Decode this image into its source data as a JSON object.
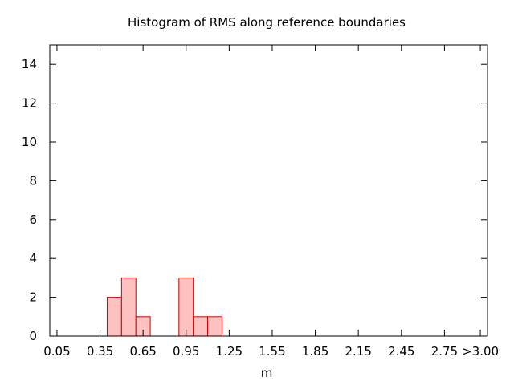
{
  "chart_data": {
    "type": "bar",
    "title": "Histogram of RMS along reference boundaries",
    "xlabel": "m",
    "ylabel": "",
    "xlim": [
      0.0,
      3.05
    ],
    "ylim": [
      0,
      15
    ],
    "bin_width": 0.1,
    "x_tick_values": [
      0.05,
      0.35,
      0.65,
      0.95,
      1.25,
      1.55,
      1.85,
      2.15,
      2.45,
      2.75,
      3.0
    ],
    "x_tick_labels": [
      "0.05",
      "0.35",
      "0.65",
      "0.95",
      "1.25",
      "1.55",
      "1.85",
      "2.15",
      "2.45",
      "2.75",
      ">3.00"
    ],
    "y_ticks": [
      0,
      2,
      4,
      6,
      8,
      10,
      12,
      14
    ],
    "bins": [
      {
        "x": 0.45,
        "count": 2
      },
      {
        "x": 0.55,
        "count": 3
      },
      {
        "x": 0.65,
        "count": 1
      },
      {
        "x": 0.95,
        "count": 3
      },
      {
        "x": 1.05,
        "count": 1
      },
      {
        "x": 1.15,
        "count": 1
      }
    ],
    "grid": false,
    "colors": {
      "fill": "#ffc0c0",
      "stroke": "#cc0000",
      "axis": "#000000"
    }
  }
}
